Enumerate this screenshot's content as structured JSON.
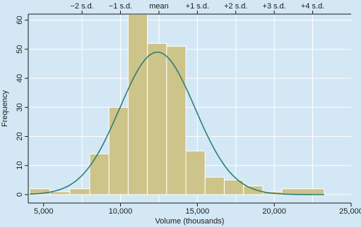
{
  "chart_data": {
    "type": "bar",
    "subtype": "histogram-with-normal-curve",
    "xlabel": "Volume (thousands)",
    "ylabel": "Frequency",
    "xlim": [
      4000,
      25000
    ],
    "ylim": [
      0,
      65
    ],
    "x_ticks": [
      {
        "value": 5000,
        "label": "5,000"
      },
      {
        "value": 10000,
        "label": "10,000"
      },
      {
        "value": 15000,
        "label": "15,000"
      },
      {
        "value": 20000,
        "label": "20,000"
      },
      {
        "value": 25000,
        "label": "25,000"
      }
    ],
    "y_ticks": [
      0,
      10,
      20,
      30,
      40,
      50,
      60
    ],
    "top_axis_ticks": [
      {
        "value": 7500,
        "label": "−2 s.d."
      },
      {
        "value": 10000,
        "label": "−1 s.d."
      },
      {
        "value": 12500,
        "label": "mean"
      },
      {
        "value": 15000,
        "label": "+1 s.d."
      },
      {
        "value": 17500,
        "label": "+2 s.d."
      },
      {
        "value": 20000,
        "label": "+3 s.d."
      },
      {
        "value": 22500,
        "label": "+4 s.d."
      }
    ],
    "bins": [
      {
        "x0": 4100,
        "x1": 5400,
        "count": 2
      },
      {
        "x0": 5400,
        "x1": 6700,
        "count": 1
      },
      {
        "x0": 6700,
        "x1": 8000,
        "count": 2
      },
      {
        "x0": 8000,
        "x1": 9250,
        "count": 14
      },
      {
        "x0": 9250,
        "x1": 10500,
        "count": 30
      },
      {
        "x0": 10500,
        "x1": 11750,
        "count": 62
      },
      {
        "x0": 11750,
        "x1": 13000,
        "count": 52
      },
      {
        "x0": 13000,
        "x1": 14250,
        "count": 51
      },
      {
        "x0": 14250,
        "x1": 15500,
        "count": 15
      },
      {
        "x0": 15500,
        "x1": 16750,
        "count": 6
      },
      {
        "x0": 16750,
        "x1": 18000,
        "count": 5
      },
      {
        "x0": 18000,
        "x1": 19250,
        "count": 3
      },
      {
        "x0": 19250,
        "x1": 20500,
        "count": 1
      },
      {
        "x0": 20500,
        "x1": 23250,
        "count": 2
      }
    ],
    "normal_curve": {
      "mean": 12400,
      "sd": 2450,
      "peak": 49
    },
    "colors": {
      "background": "#d3e8f4",
      "bar_fill": "#cdc48a",
      "bar_stroke": "#ffffff",
      "curve": "#2e7d78",
      "gridline": "#ffffff"
    },
    "grid": true
  }
}
